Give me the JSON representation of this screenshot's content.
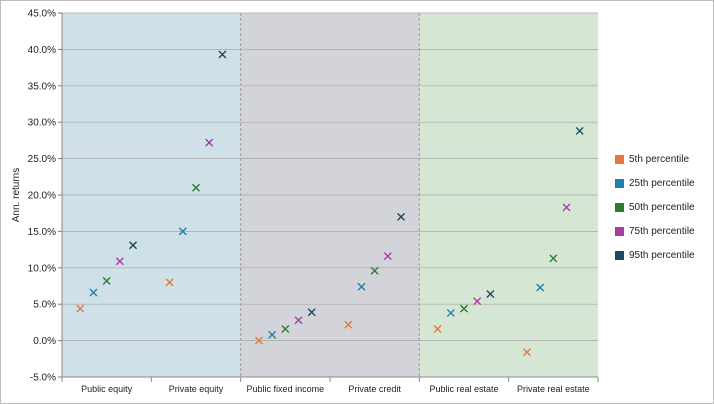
{
  "chart_data": {
    "type": "scatter",
    "title": "",
    "xlabel": "",
    "ylabel": "Ann. returns",
    "ylim": [
      -5,
      45
    ],
    "ytick_step": 5,
    "ytick_labels": [
      "-5.0%",
      "0.0%",
      "5.0%",
      "10.0%",
      "15.0%",
      "20.0%",
      "25.0%",
      "30.0%",
      "35.0%",
      "40.0%",
      "45.0%"
    ],
    "categories": [
      "Public equity",
      "Private equity",
      "Public fixed income",
      "Private credit",
      "Public real estate",
      "Private real estate"
    ],
    "marker": "x",
    "legend_position": "right",
    "bands": [
      {
        "name": "equity",
        "categories": [
          0,
          1
        ],
        "color": "#cfe0e8"
      },
      {
        "name": "fixed-income",
        "categories": [
          2,
          3
        ],
        "color": "#d3d4da"
      },
      {
        "name": "real-estate",
        "categories": [
          4,
          5
        ],
        "color": "#d5e7d4"
      }
    ],
    "series": [
      {
        "name": "5th percentile",
        "color": "#e07b39",
        "values": [
          4.4,
          8.0,
          0.0,
          2.2,
          1.6,
          -1.6
        ]
      },
      {
        "name": "25th percentile",
        "color": "#1f7fb0",
        "values": [
          6.6,
          15.0,
          0.8,
          7.4,
          3.8,
          7.3
        ]
      },
      {
        "name": "50th percentile",
        "color": "#2e7d32",
        "values": [
          8.2,
          21.0,
          1.6,
          9.6,
          4.4,
          11.3
        ]
      },
      {
        "name": "75th percentile",
        "color": "#a43fa1",
        "values": [
          10.9,
          27.2,
          2.8,
          11.6,
          5.4,
          18.3
        ]
      },
      {
        "name": "95th percentile",
        "color": "#1c4a5e",
        "values": [
          13.1,
          39.3,
          3.9,
          17.0,
          6.4,
          28.8
        ]
      }
    ]
  }
}
